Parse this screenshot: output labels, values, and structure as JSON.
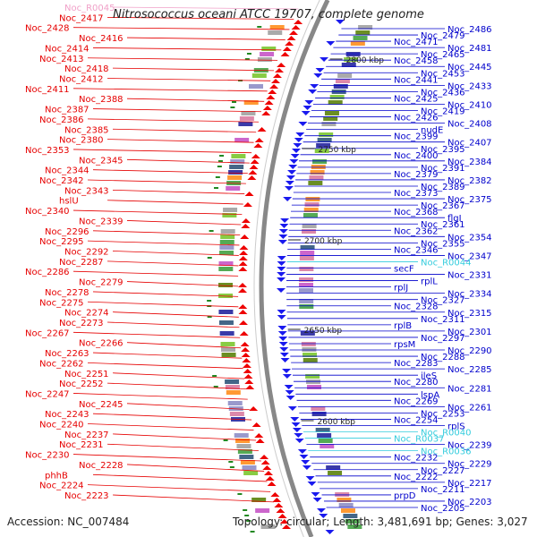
{
  "title": "Nitrosococcus oceani ATCC 19707, complete genome",
  "accession": "Accession: NC_007484",
  "topology": "Topology: circular; Length: 3,481,691 bp; Genes: 3,027",
  "colors": {
    "forward_label": "#e60000",
    "reverse_label": "#0000cc",
    "rna_label": "#33ccdd",
    "rna_label_pink": "#f0a0c8",
    "backbone": "#888888"
  },
  "kbp_ticks": [
    "2800 kbp",
    "2750 kbp",
    "2700 kbp",
    "2650 kbp",
    "2600 kbp"
  ],
  "left_labels": [
    {
      "text": "Noc_R0045",
      "kind": "rna_pink"
    },
    {
      "text": "Noc_2417",
      "kind": "fwd"
    },
    {
      "text": "Noc_2428",
      "kind": "fwd"
    },
    {
      "text": "Noc_2416",
      "kind": "fwd"
    },
    {
      "text": "Noc_2414",
      "kind": "fwd"
    },
    {
      "text": "Noc_2413",
      "kind": "fwd"
    },
    {
      "text": "Noc_2418",
      "kind": "fwd"
    },
    {
      "text": "Noc_2412",
      "kind": "fwd"
    },
    {
      "text": "Noc_2411",
      "kind": "fwd"
    },
    {
      "text": "Noc_2388",
      "kind": "fwd"
    },
    {
      "text": "Noc_2387",
      "kind": "fwd"
    },
    {
      "text": "Noc_2386",
      "kind": "fwd"
    },
    {
      "text": "Noc_2385",
      "kind": "fwd"
    },
    {
      "text": "Noc_2380",
      "kind": "fwd"
    },
    {
      "text": "Noc_2353",
      "kind": "fwd"
    },
    {
      "text": "Noc_2345",
      "kind": "fwd"
    },
    {
      "text": "Noc_2344",
      "kind": "fwd"
    },
    {
      "text": "Noc_2342",
      "kind": "fwd"
    },
    {
      "text": "Noc_2343",
      "kind": "fwd"
    },
    {
      "text": "hslU",
      "kind": "fwd"
    },
    {
      "text": "Noc_2340",
      "kind": "fwd"
    },
    {
      "text": "Noc_2339",
      "kind": "fwd"
    },
    {
      "text": "Noc_2296",
      "kind": "fwd"
    },
    {
      "text": "Noc_2295",
      "kind": "fwd"
    },
    {
      "text": "Noc_2292",
      "kind": "fwd"
    },
    {
      "text": "Noc_2287",
      "kind": "fwd"
    },
    {
      "text": "Noc_2286",
      "kind": "fwd"
    },
    {
      "text": "Noc_2279",
      "kind": "fwd"
    },
    {
      "text": "Noc_2278",
      "kind": "fwd"
    },
    {
      "text": "Noc_2275",
      "kind": "fwd"
    },
    {
      "text": "Noc_2274",
      "kind": "fwd"
    },
    {
      "text": "Noc_2273",
      "kind": "fwd"
    },
    {
      "text": "Noc_2267",
      "kind": "fwd"
    },
    {
      "text": "Noc_2266",
      "kind": "fwd"
    },
    {
      "text": "Noc_2263",
      "kind": "fwd"
    },
    {
      "text": "Noc_2262",
      "kind": "fwd"
    },
    {
      "text": "Noc_2251",
      "kind": "fwd"
    },
    {
      "text": "Noc_2252",
      "kind": "fwd"
    },
    {
      "text": "Noc_2247",
      "kind": "fwd"
    },
    {
      "text": "Noc_2245",
      "kind": "fwd"
    },
    {
      "text": "Noc_2243",
      "kind": "fwd"
    },
    {
      "text": "Noc_2240",
      "kind": "fwd"
    },
    {
      "text": "Noc_2237",
      "kind": "fwd"
    },
    {
      "text": "Noc_2231",
      "kind": "fwd"
    },
    {
      "text": "Noc_2230",
      "kind": "fwd"
    },
    {
      "text": "Noc_2228",
      "kind": "fwd"
    },
    {
      "text": "phhB",
      "kind": "fwd"
    },
    {
      "text": "Noc_2224",
      "kind": "fwd"
    },
    {
      "text": "Noc_2223",
      "kind": "fwd"
    }
  ],
  "right_labels": [
    {
      "text": "Noc_2486",
      "kind": "rev"
    },
    {
      "text": "Noc_2479",
      "kind": "rev"
    },
    {
      "text": "Noc_2471",
      "kind": "rev"
    },
    {
      "text": "Noc_2481",
      "kind": "rev"
    },
    {
      "text": "Noc_2465",
      "kind": "rev"
    },
    {
      "text": "Noc_2458",
      "kind": "rev"
    },
    {
      "text": "Noc_2445",
      "kind": "rev"
    },
    {
      "text": "Noc_2453",
      "kind": "rev"
    },
    {
      "text": "Noc_2441",
      "kind": "rev"
    },
    {
      "text": "Noc_2433",
      "kind": "rev"
    },
    {
      "text": "Noc_2436",
      "kind": "rev"
    },
    {
      "text": "Noc_2425",
      "kind": "rev"
    },
    {
      "text": "Noc_2410",
      "kind": "rev"
    },
    {
      "text": "Noc_2419",
      "kind": "rev"
    },
    {
      "text": "Noc_2426",
      "kind": "rev"
    },
    {
      "text": "Noc_2408",
      "kind": "rev"
    },
    {
      "text": "nudE",
      "kind": "rev"
    },
    {
      "text": "Noc_2399",
      "kind": "rev"
    },
    {
      "text": "Noc_2407",
      "kind": "rev"
    },
    {
      "text": "Noc_2395",
      "kind": "rev"
    },
    {
      "text": "Noc_2400",
      "kind": "rev"
    },
    {
      "text": "Noc_2384",
      "kind": "rev"
    },
    {
      "text": "Noc_2391",
      "kind": "rev"
    },
    {
      "text": "Noc_2379",
      "kind": "rev"
    },
    {
      "text": "Noc_2382",
      "kind": "rev"
    },
    {
      "text": "Noc_2389",
      "kind": "rev"
    },
    {
      "text": "Noc_2373",
      "kind": "rev"
    },
    {
      "text": "Noc_2375",
      "kind": "rev"
    },
    {
      "text": "Noc_2367",
      "kind": "rev"
    },
    {
      "text": "Noc_2368",
      "kind": "rev"
    },
    {
      "text": "flgI",
      "kind": "rev"
    },
    {
      "text": "Noc_2361",
      "kind": "rev"
    },
    {
      "text": "Noc_2362",
      "kind": "rev"
    },
    {
      "text": "Noc_2354",
      "kind": "rev"
    },
    {
      "text": "Noc_2355",
      "kind": "rev"
    },
    {
      "text": "Noc_2346",
      "kind": "rev"
    },
    {
      "text": "Noc_2347",
      "kind": "rev"
    },
    {
      "text": "Noc_R0044",
      "kind": "rna"
    },
    {
      "text": "secF",
      "kind": "rev"
    },
    {
      "text": "Noc_2331",
      "kind": "rev"
    },
    {
      "text": "rplL",
      "kind": "rev"
    },
    {
      "text": "rplJ",
      "kind": "rev"
    },
    {
      "text": "Noc_2334",
      "kind": "rev"
    },
    {
      "text": "Noc_2327",
      "kind": "rev"
    },
    {
      "text": "Noc_2328",
      "kind": "rev"
    },
    {
      "text": "Noc_2315",
      "kind": "rev"
    },
    {
      "text": "Noc_2311",
      "kind": "rev"
    },
    {
      "text": "rplB",
      "kind": "rev"
    },
    {
      "text": "Noc_2301",
      "kind": "rev"
    },
    {
      "text": "Noc_2297",
      "kind": "rev"
    },
    {
      "text": "rpsM",
      "kind": "rev"
    },
    {
      "text": "Noc_2290",
      "kind": "rev"
    },
    {
      "text": "Noc_2288",
      "kind": "rev"
    },
    {
      "text": "Noc_2283",
      "kind": "rev"
    },
    {
      "text": "Noc_2285",
      "kind": "rev"
    },
    {
      "text": "ileS",
      "kind": "rev"
    },
    {
      "text": "Noc_2280",
      "kind": "rev"
    },
    {
      "text": "Noc_2281",
      "kind": "rev"
    },
    {
      "text": "lspA",
      "kind": "rev"
    },
    {
      "text": "Noc_2269",
      "kind": "rev"
    },
    {
      "text": "Noc_2261",
      "kind": "rev"
    },
    {
      "text": "Noc_2253",
      "kind": "rev"
    },
    {
      "text": "Noc_2254",
      "kind": "rev"
    },
    {
      "text": "rplS",
      "kind": "rev"
    },
    {
      "text": "Noc_R0040",
      "kind": "rna"
    },
    {
      "text": "Noc_R0037",
      "kind": "rna"
    },
    {
      "text": "Noc_2239",
      "kind": "rev"
    },
    {
      "text": "Noc_R0036",
      "kind": "rna"
    },
    {
      "text": "Noc_2232",
      "kind": "rev"
    },
    {
      "text": "Noc_2229",
      "kind": "rev"
    },
    {
      "text": "Noc_2227",
      "kind": "rev"
    },
    {
      "text": "Noc_2222",
      "kind": "rev"
    },
    {
      "text": "Noc_2217",
      "kind": "rev"
    },
    {
      "text": "Noc_2211",
      "kind": "rev"
    },
    {
      "text": "prpD",
      "kind": "rev"
    },
    {
      "text": "Noc_2203",
      "kind": "rev"
    },
    {
      "text": "Noc_2205",
      "kind": "rev"
    }
  ]
}
